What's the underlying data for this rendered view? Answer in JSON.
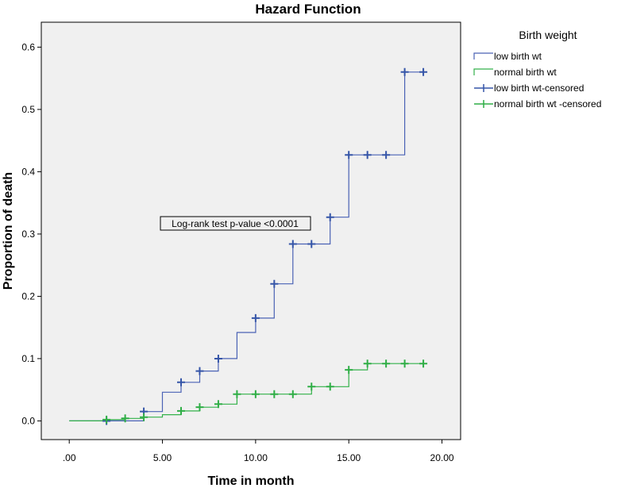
{
  "chart_data": {
    "type": "line",
    "title": "Hazard Function",
    "xlabel": "Time in month",
    "ylabel": "Proportion of death",
    "xlim": [
      -1.5,
      21
    ],
    "ylim": [
      -0.03,
      0.64
    ],
    "x_ticks": [
      ".00",
      "5.00",
      "10.00",
      "15.00",
      "20.00"
    ],
    "x_tick_values": [
      0,
      5,
      10,
      15,
      20
    ],
    "y_ticks": [
      "0.0",
      "0.1",
      "0.2",
      "0.3",
      "0.4",
      "0.5",
      "0.6"
    ],
    "y_tick_values": [
      0,
      0.1,
      0.2,
      0.3,
      0.4,
      0.5,
      0.6
    ],
    "grid": false,
    "legend_title": "Birth weight",
    "legend_position": "top-right, outside plot",
    "annotation": "Log-rank test p-value <0.0001",
    "series": [
      {
        "name": "low birth wt",
        "color": "#4a62b5",
        "steps": [
          [
            0,
            0
          ],
          [
            4,
            0.015
          ],
          [
            5,
            0.046
          ],
          [
            6,
            0.062
          ],
          [
            7,
            0.08
          ],
          [
            8,
            0.1
          ],
          [
            9,
            0.142
          ],
          [
            10,
            0.165
          ],
          [
            11,
            0.22
          ],
          [
            12,
            0.284
          ],
          [
            14,
            0.327
          ],
          [
            15,
            0.427
          ],
          [
            18,
            0.56
          ]
        ],
        "end_x": 19
      },
      {
        "name": "normal birth wt",
        "color": "#33b14a",
        "steps": [
          [
            0,
            0
          ],
          [
            2,
            0.002
          ],
          [
            3,
            0.004
          ],
          [
            4,
            0.006
          ],
          [
            5,
            0.01
          ],
          [
            6,
            0.016
          ],
          [
            7,
            0.022
          ],
          [
            8,
            0.027
          ],
          [
            9,
            0.043
          ],
          [
            13,
            0.055
          ],
          [
            15,
            0.082
          ],
          [
            16,
            0.092
          ]
        ],
        "end_x": 19
      },
      {
        "name": "low birth wt-censored",
        "color": "#3555a8",
        "marker": "+",
        "points": [
          [
            2,
            0.0
          ],
          [
            4,
            0.015
          ],
          [
            6,
            0.062
          ],
          [
            7,
            0.08
          ],
          [
            8,
            0.1
          ],
          [
            10,
            0.165
          ],
          [
            11,
            0.22
          ],
          [
            12,
            0.284
          ],
          [
            13,
            0.284
          ],
          [
            14,
            0.327
          ],
          [
            15,
            0.427
          ],
          [
            16,
            0.427
          ],
          [
            17,
            0.427
          ],
          [
            18,
            0.56
          ],
          [
            19,
            0.56
          ]
        ]
      },
      {
        "name": "normal birth wt -censored",
        "color": "#2fae46",
        "marker": "+",
        "points": [
          [
            2,
            0.002
          ],
          [
            3,
            0.004
          ],
          [
            4,
            0.006
          ],
          [
            6,
            0.016
          ],
          [
            7,
            0.022
          ],
          [
            8,
            0.027
          ],
          [
            9,
            0.043
          ],
          [
            10,
            0.043
          ],
          [
            11,
            0.043
          ],
          [
            12,
            0.043
          ],
          [
            13,
            0.055
          ],
          [
            14,
            0.055
          ],
          [
            15,
            0.082
          ],
          [
            16,
            0.092
          ],
          [
            17,
            0.092
          ],
          [
            18,
            0.092
          ],
          [
            19,
            0.092
          ]
        ]
      }
    ]
  }
}
